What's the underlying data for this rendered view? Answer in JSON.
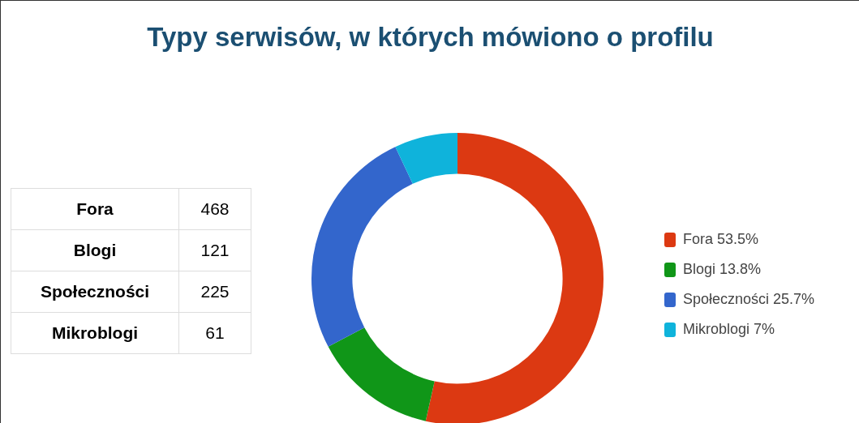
{
  "chart_data": [
    {
      "type": "other",
      "categories": [
        "Fora",
        "Blogi",
        "Społeczności",
        "Mikroblogi"
      ],
      "values": [
        468,
        121,
        225,
        61
      ],
      "data_labels": true
    },
    {
      "type": "donut",
      "title": "Typy serwisów, w których mówiono o profilu",
      "categories": [
        "Fora",
        "Blogi",
        "Społeczności",
        "Mikroblogi"
      ],
      "values": [
        53.5,
        13.8,
        25.7,
        7
      ],
      "colors": [
        "#dc3912",
        "#109618",
        "#3366cc",
        "#0fb3db"
      ],
      "value_labels": [
        "53.5%",
        "13.8%",
        "25.7%",
        "7%"
      ],
      "legend": "right"
    }
  ]
}
